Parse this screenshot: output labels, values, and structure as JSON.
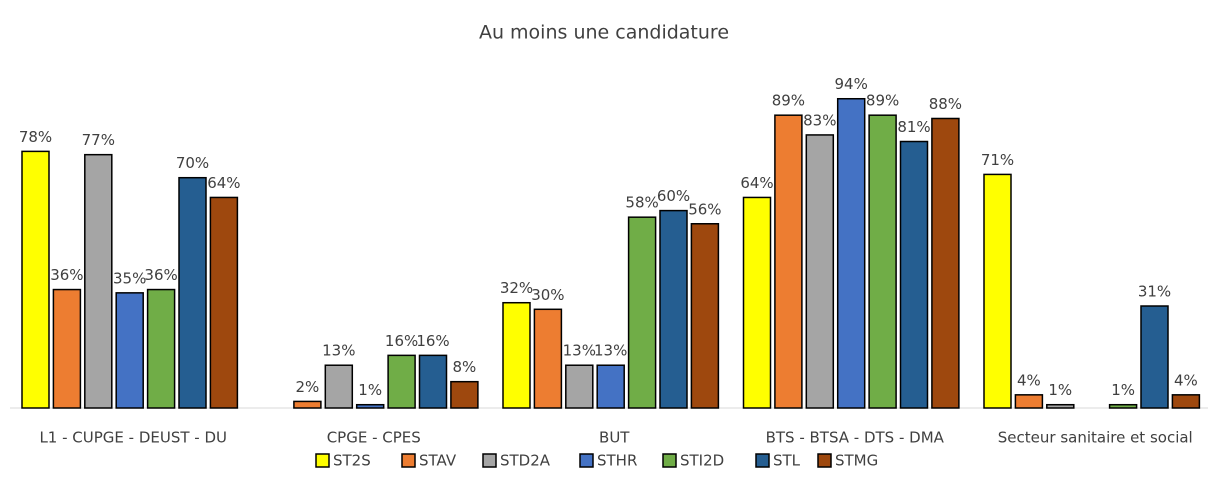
{
  "chart_data": {
    "type": "bar",
    "title": "Au moins une candidature",
    "categories": [
      "L1 - CUPGE - DEUST - DU",
      "CPGE - CPES",
      "BUT",
      "BTS - BTSA - DTS - DMA",
      "Secteur sanitaire et social"
    ],
    "series": [
      {
        "name": "ST2S",
        "color": "#ffff00",
        "values": [
          78,
          null,
          32,
          64,
          71
        ],
        "value_labels": [
          "78%",
          null,
          "32%",
          "64%",
          "71%"
        ]
      },
      {
        "name": "STAV",
        "color": "#ed7d31",
        "values": [
          36,
          2,
          30,
          89,
          4
        ],
        "value_labels": [
          "36%",
          "2%",
          "30%",
          "89%",
          "4%"
        ]
      },
      {
        "name": "STD2A",
        "color": "#a5a5a5",
        "values": [
          77,
          13,
          13,
          83,
          1
        ],
        "value_labels": [
          "77%",
          "13%",
          "13%",
          "83%",
          "1%"
        ]
      },
      {
        "name": "STHR",
        "color": "#4472c4",
        "values": [
          35,
          1,
          13,
          94,
          null
        ],
        "value_labels": [
          "35%",
          "1%",
          "13%",
          "94%",
          null
        ]
      },
      {
        "name": "STI2D",
        "color": "#70ad47",
        "values": [
          36,
          16,
          58,
          89,
          1
        ],
        "value_labels": [
          "36%",
          "16%",
          "58%",
          "89%",
          "1%"
        ]
      },
      {
        "name": "STL",
        "color": "#255e91",
        "values": [
          70,
          16,
          60,
          81,
          31
        ],
        "value_labels": [
          "70%",
          "16%",
          "60%",
          "81%",
          "31%"
        ]
      },
      {
        "name": "STMG",
        "color": "#9e480e",
        "values": [
          64,
          8,
          56,
          88,
          4
        ],
        "value_labels": [
          "64%",
          "8%",
          "56%",
          "88%",
          "4%"
        ]
      }
    ],
    "legend": "bottom"
  }
}
